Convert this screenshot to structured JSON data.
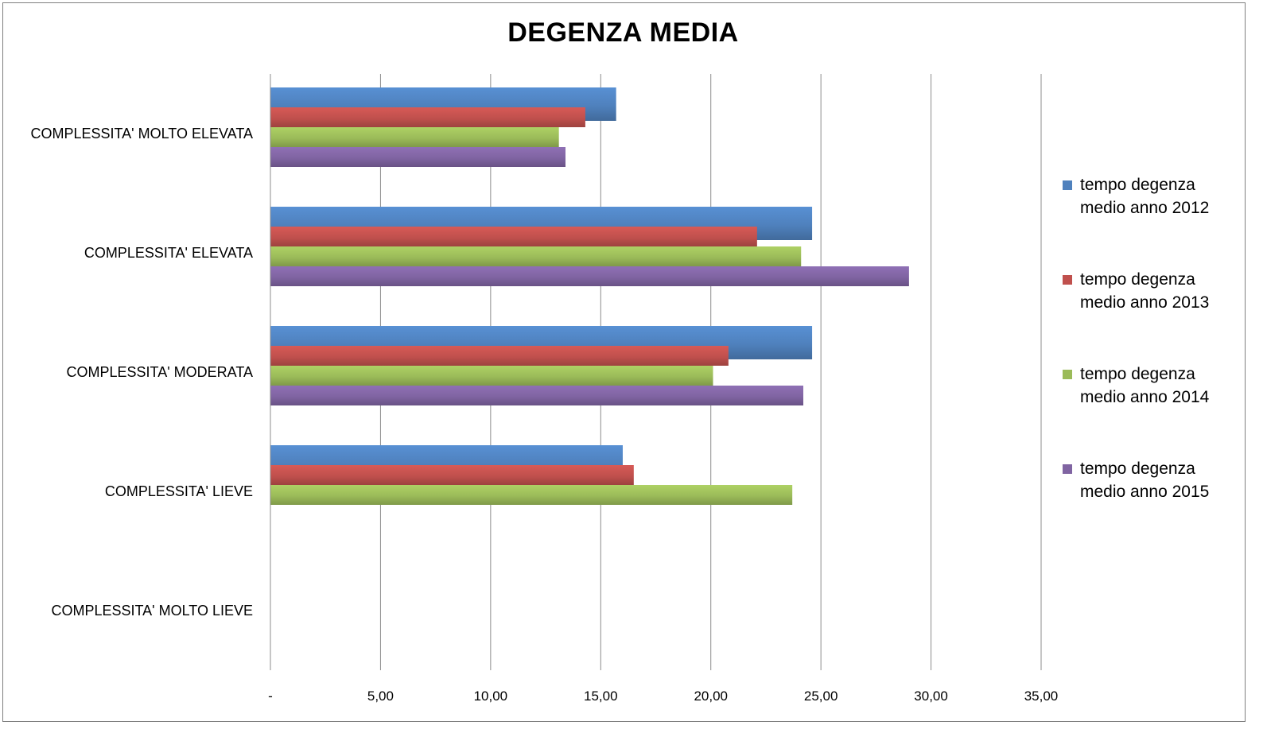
{
  "chart_data": {
    "type": "bar",
    "orientation": "horizontal",
    "title": "DEGENZA MEDIA",
    "categories": [
      "COMPLESSITA' MOLTO ELEVATA",
      "COMPLESSITA' ELEVATA",
      "COMPLESSITA' MODERATA",
      "COMPLESSITA' LIEVE",
      "COMPLESSITA' MOLTO LIEVE"
    ],
    "series": [
      {
        "name": "tempo degenza medio anno 2012",
        "color": "#4f81bd",
        "values": [
          15.7,
          24.6,
          24.6,
          16.0,
          null
        ]
      },
      {
        "name": "tempo degenza medio anno 2013",
        "color": "#c0504d",
        "values": [
          14.3,
          22.1,
          20.8,
          16.5,
          null
        ]
      },
      {
        "name": "tempo degenza medio anno 2014",
        "color": "#9bbb59",
        "values": [
          13.1,
          24.1,
          20.1,
          23.7,
          null
        ]
      },
      {
        "name": "tempo degenza medio anno 2015",
        "color": "#8064a2",
        "values": [
          13.4,
          29.0,
          24.2,
          null,
          null
        ]
      }
    ],
    "xlim": [
      0,
      35
    ],
    "x_ticks": [
      0,
      5,
      10,
      15,
      20,
      25,
      30,
      35
    ],
    "x_tick_labels": [
      "-",
      "5,00",
      "10,00",
      "15,00",
      "20,00",
      "25,00",
      "30,00",
      "35,00"
    ],
    "grid": "vertical",
    "legend_position": "right"
  }
}
